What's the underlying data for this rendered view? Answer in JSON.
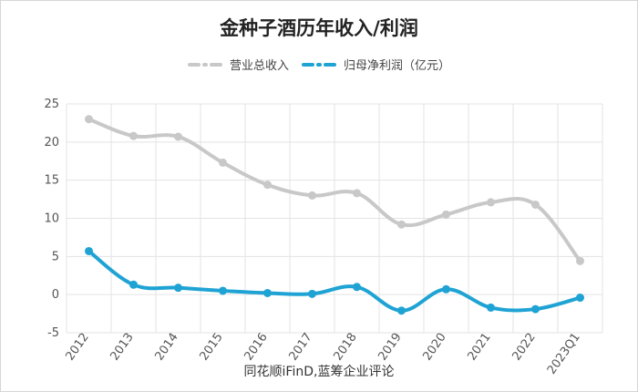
{
  "chart_data": {
    "type": "line",
    "title": "金种子酒历年收入/利润",
    "xlabel": "",
    "ylabel": "",
    "categories": [
      "2012",
      "2013",
      "2014",
      "2015",
      "2016",
      "2017",
      "2018",
      "2019",
      "2020",
      "2021",
      "2022",
      "2023Q1"
    ],
    "y_ticks": [
      "25",
      "20",
      "15",
      "10",
      "5",
      "0",
      "-5"
    ],
    "ylim": [
      -5,
      25
    ],
    "grid": true,
    "legend_position": "top",
    "series": [
      {
        "name": "营业总收入",
        "color": "#c8c8c8",
        "values": [
          23.0,
          20.8,
          20.7,
          17.3,
          14.4,
          13.0,
          13.3,
          9.2,
          10.5,
          12.1,
          11.8,
          4.4
        ]
      },
      {
        "name": "归母净利润（亿元）",
        "color": "#1fa3d4",
        "values": [
          5.7,
          1.3,
          0.9,
          0.5,
          0.2,
          0.1,
          1.0,
          -2.1,
          0.7,
          -1.7,
          -1.9,
          -0.4
        ]
      }
    ]
  },
  "source_text": "同花顺iFinD,蓝筹企业评论"
}
